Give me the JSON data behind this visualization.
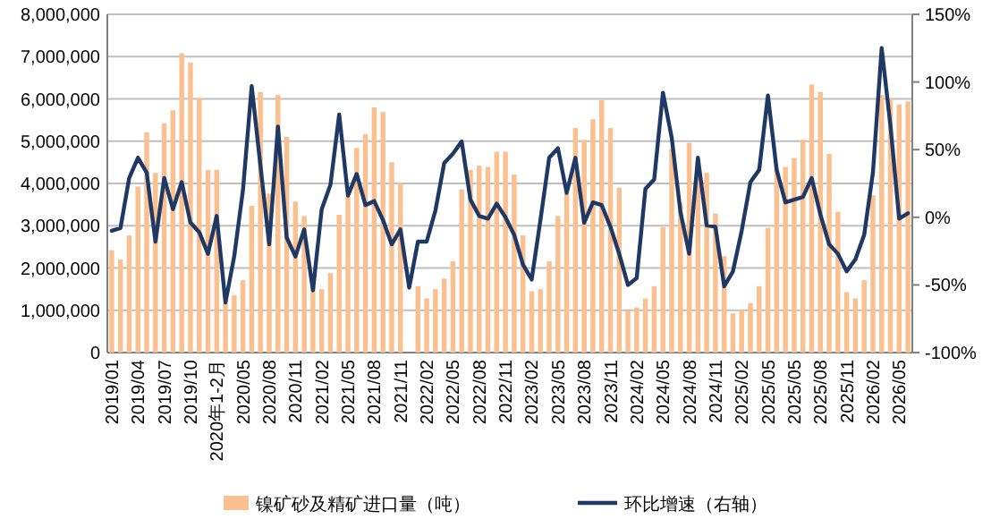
{
  "chart_data": {
    "type": "bar",
    "categories": [
      "2019/01",
      null,
      null,
      "2019/04",
      null,
      null,
      "2019/07",
      null,
      null,
      "2019/10",
      null,
      null,
      "2020年1-2月",
      null,
      null,
      "2020/05",
      null,
      null,
      "2020/08",
      null,
      null,
      "2020/11",
      null,
      null,
      "2021/02",
      null,
      null,
      "2021/05",
      null,
      null,
      "2021/08",
      null,
      null,
      "2021/11",
      null,
      null,
      "2022/02",
      null,
      null,
      "2022/05",
      null,
      null,
      "2022/08",
      null,
      null,
      "2022/11",
      null,
      null,
      "2023/02",
      null,
      null,
      "2023/05",
      null,
      null,
      "2023/08",
      null,
      null,
      "2023/11",
      null,
      null,
      "2024/02",
      null,
      null,
      "2024/05",
      null,
      null,
      "2024/08",
      null,
      null,
      "2024/11",
      null,
      null,
      "2025/02",
      null,
      null,
      "2025/05",
      null,
      null,
      "2025/05",
      null,
      null,
      "2025/08",
      null,
      null,
      "2025/11",
      null,
      null,
      "2026/02",
      null,
      null,
      "2026/05",
      null
    ],
    "series": [
      {
        "name": "镍矿砂及精矿进口量（吨）",
        "color": "#fac090",
        "values": [
          2420000,
          2200000,
          2770000,
          3930000,
          5210000,
          4250000,
          5420000,
          5730000,
          7080000,
          6860000,
          6020000,
          4320000,
          4320000,
          1170000,
          1360000,
          1710000,
          3470000,
          6160000,
          3760000,
          6090000,
          5100000,
          3570000,
          3230000,
          1570000,
          1500000,
          1880000,
          3260000,
          3690000,
          4840000,
          5170000,
          5800000,
          5690000,
          4500000,
          4010000,
          null,
          1570000,
          1280000,
          1500000,
          1750000,
          2160000,
          3860000,
          4320000,
          4420000,
          4390000,
          4750000,
          4750000,
          4210000,
          2770000,
          1450000,
          1500000,
          2160000,
          3230000,
          3760000,
          5310000,
          5030000,
          5520000,
          5970000,
          5310000,
          3900000,
          1000000,
          1070000,
          1280000,
          1570000,
          2970000,
          4820000,
          3550000,
          4960000,
          4560000,
          4250000,
          3290000,
          2280000,
          930000,
          1000000,
          1170000,
          1570000,
          2950000,
          4350000,
          4390000,
          4600000,
          5030000,
          6340000,
          6160000,
          4700000,
          3330000,
          1430000,
          1280000,
          1710000,
          3720000,
          6090000,
          6020000,
          5870000,
          5940000
        ]
      },
      {
        "name": "环比增速（右轴）",
        "type": "line",
        "axis": "y2",
        "color": "#1f3864",
        "values": [
          -10,
          -8,
          29,
          44,
          33,
          -18,
          29,
          6,
          26,
          -4,
          -11,
          -27,
          1,
          -63,
          -29,
          20,
          97,
          38,
          -20,
          67,
          -15,
          -29,
          -9,
          -54,
          6,
          24,
          76,
          16,
          32,
          9,
          12,
          -2,
          -20,
          -9,
          -52,
          -18,
          -18,
          5,
          40,
          47,
          56,
          13,
          1,
          -1,
          10,
          0,
          -13,
          -35,
          -46,
          -2,
          44,
          51,
          18,
          44,
          -4,
          11,
          9,
          -7,
          -27,
          -50,
          -45,
          21,
          28,
          92,
          59,
          4,
          -27,
          44,
          -6,
          -7,
          -51,
          -40,
          -10,
          26,
          35,
          90,
          35,
          11,
          13,
          15,
          29,
          2,
          -20,
          -27,
          -40,
          -31,
          -13,
          33,
          125,
          68,
          -1,
          3
        ]
      }
    ],
    "ylim": [
      0,
      8000000
    ],
    "yticks": [
      0,
      {
        "value": 1000000,
        "label": "1,000,000"
      },
      {
        "value": 2000000,
        "label": "2,000,000"
      },
      {
        "value": 3000000,
        "label": "3,000,000"
      },
      {
        "value": 4000000,
        "label": "4,000,000"
      },
      {
        "value": 5000000,
        "label": "5,000,000"
      },
      {
        "value": 6000000,
        "label": "6,000,000"
      },
      {
        "value": 7000000,
        "label": "7,000,000"
      },
      {
        "value": 8000000,
        "label": "8,000,000"
      }
    ],
    "y2lim": [
      -100,
      150
    ],
    "y2ticks": [
      {
        "value": -100,
        "label": "-100%"
      },
      {
        "value": -50,
        "label": "-50%"
      },
      {
        "value": 0,
        "label": "0%"
      },
      {
        "value": 50,
        "label": "50%"
      },
      {
        "value": 100,
        "label": "100%"
      },
      {
        "value": 150,
        "label": "150%"
      }
    ],
    "grid": "y",
    "legend": "bottom"
  }
}
